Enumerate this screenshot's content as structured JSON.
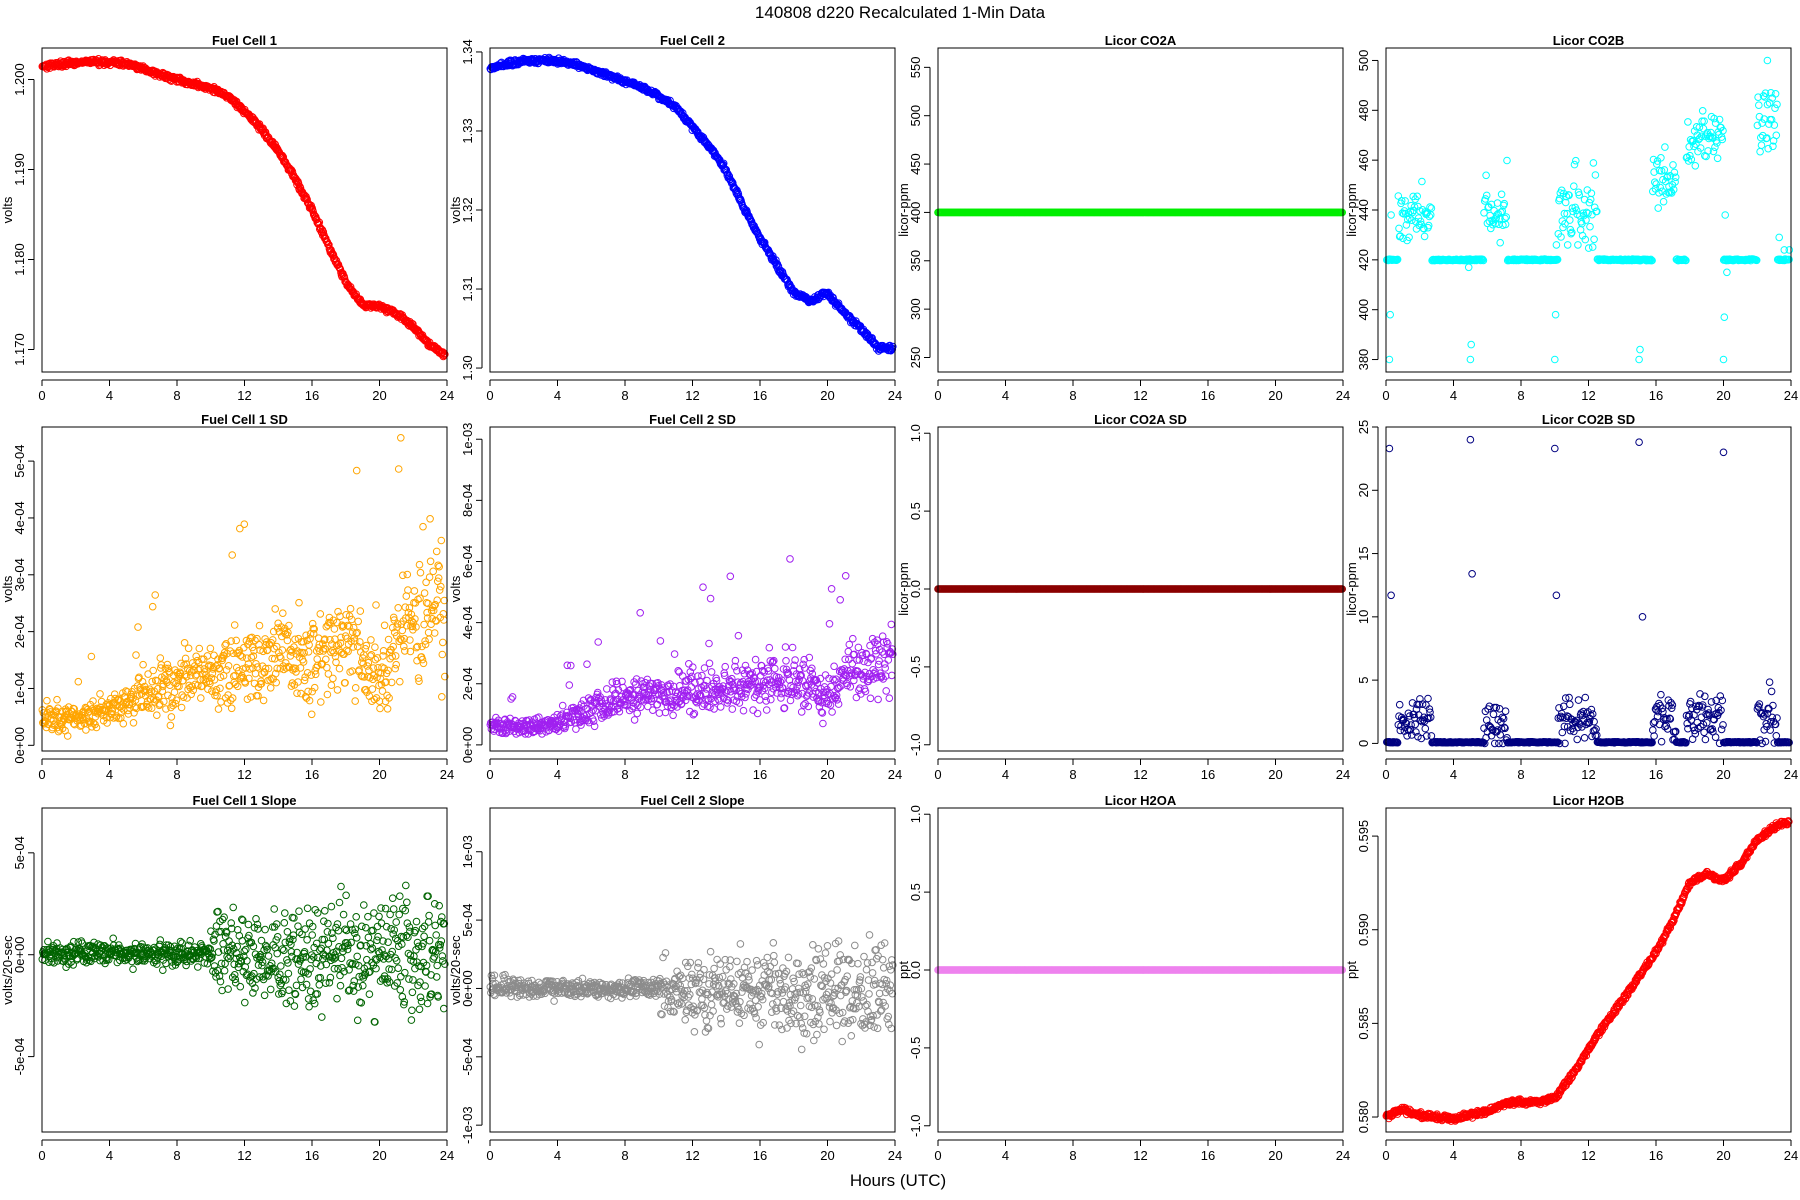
{
  "figure": {
    "title": "140808   d220   Recalculated 1-Min Data",
    "xlabel": "Hours (UTC)"
  },
  "chart_data": [
    {
      "id": "fc1",
      "type": "scatter",
      "title": "Fuel Cell 1",
      "ylabel": "volts",
      "color": "#ff0000",
      "xlim": [
        0,
        24
      ],
      "xticks": [
        0,
        4,
        8,
        12,
        16,
        20,
        24
      ],
      "xtick_labels": [
        "0",
        "4",
        "8",
        "12",
        "16",
        "20",
        "24"
      ],
      "ylim": [
        1.1675,
        1.2035
      ],
      "yticks": [
        1.17,
        1.18,
        1.19,
        1.2
      ],
      "ytick_labels": [
        "1.170",
        "1.180",
        "1.190",
        "1.200"
      ],
      "x": [
        0,
        1,
        2,
        3,
        4,
        5,
        6,
        7,
        8,
        9,
        10,
        11,
        12,
        13,
        14,
        15,
        16,
        17,
        18,
        19,
        20,
        21,
        22,
        23,
        24
      ],
      "y": [
        1.2015,
        1.2017,
        1.2018,
        1.202,
        1.2019,
        1.2018,
        1.2012,
        1.2005,
        1.2,
        1.1995,
        1.199,
        1.1982,
        1.1965,
        1.1945,
        1.192,
        1.189,
        1.1855,
        1.1815,
        1.1775,
        1.175,
        1.1748,
        1.174,
        1.1725,
        1.1705,
        1.1693
      ]
    },
    {
      "id": "fc2",
      "type": "scatter",
      "title": "Fuel Cell 2",
      "ylabel": "volts",
      "color": "#0000ff",
      "xlim": [
        0,
        24
      ],
      "xticks": [
        0,
        4,
        8,
        12,
        16,
        20,
        24
      ],
      "xtick_labels": [
        "0",
        "4",
        "8",
        "12",
        "16",
        "20",
        "24"
      ],
      "ylim": [
        1.2995,
        1.3405
      ],
      "yticks": [
        1.3,
        1.31,
        1.32,
        1.33,
        1.34
      ],
      "ytick_labels": [
        "1.30",
        "1.31",
        "1.32",
        "1.33",
        "1.34"
      ],
      "x": [
        0,
        1,
        2,
        3,
        4,
        5,
        6,
        7,
        8,
        9,
        10,
        11,
        12,
        13,
        14,
        15,
        16,
        17,
        18,
        19,
        20,
        21,
        22,
        23,
        24
      ],
      "y": [
        1.338,
        1.3385,
        1.3388,
        1.339,
        1.3388,
        1.3385,
        1.3378,
        1.337,
        1.3363,
        1.3355,
        1.3345,
        1.333,
        1.3305,
        1.328,
        1.325,
        1.3205,
        1.3165,
        1.313,
        1.3095,
        1.3085,
        1.3095,
        1.307,
        1.305,
        1.3025,
        1.3025
      ]
    },
    {
      "id": "co2a",
      "type": "scatter",
      "title": "Licor CO2A",
      "ylabel": "licor-ppm",
      "color": "#00ee00",
      "xlim": [
        0,
        24
      ],
      "xticks": [
        0,
        4,
        8,
        12,
        16,
        20,
        24
      ],
      "xtick_labels": [
        "0",
        "4",
        "8",
        "12",
        "16",
        "20",
        "24"
      ],
      "ylim": [
        235,
        570
      ],
      "yticks": [
        250,
        300,
        350,
        400,
        450,
        500,
        550
      ],
      "ytick_labels": [
        "250",
        "300",
        "350",
        "400",
        "450",
        "500",
        "550"
      ],
      "x": [
        0,
        24
      ],
      "y": [
        400,
        400
      ]
    },
    {
      "id": "co2b",
      "type": "scatter",
      "title": "Licor CO2B",
      "ylabel": "licor-ppm",
      "color": "#00ffff",
      "xlim": [
        0,
        24
      ],
      "xticks": [
        0,
        4,
        8,
        12,
        16,
        20,
        24
      ],
      "xtick_labels": [
        "0",
        "4",
        "8",
        "12",
        "16",
        "20",
        "24"
      ],
      "ylim": [
        375,
        505
      ],
      "yticks": [
        380,
        400,
        420,
        440,
        460,
        480,
        500
      ],
      "ytick_labels": [
        "380",
        "400",
        "420",
        "440",
        "460",
        "480",
        "500"
      ],
      "baseline": 420,
      "bursts": [
        {
          "x_start": 0.7,
          "x_end": 2.7,
          "center": 437,
          "spread": 5
        },
        {
          "x_start": 5.8,
          "x_end": 7.2,
          "center": 439,
          "spread": 6
        },
        {
          "x_start": 10.2,
          "x_end": 12.5,
          "center": 440,
          "spread": 8
        },
        {
          "x_start": 15.8,
          "x_end": 17.2,
          "center": 452,
          "spread": 6
        },
        {
          "x_start": 17.8,
          "x_end": 20,
          "center": 468,
          "spread": 6
        },
        {
          "x_start": 22,
          "x_end": 23.2,
          "center": 478,
          "spread": 8
        }
      ]
    },
    {
      "id": "fc1sd",
      "type": "scatter",
      "title": "Fuel Cell 1 SD",
      "ylabel": "volts",
      "color": "#ffa500",
      "xlim": [
        0,
        24
      ],
      "xticks": [
        0,
        4,
        8,
        12,
        16,
        20,
        24
      ],
      "xtick_labels": [
        "0",
        "4",
        "8",
        "12",
        "16",
        "20",
        "24"
      ],
      "ylim": [
        -1e-05,
        0.00056
      ],
      "yticks": [
        0,
        0.0001,
        0.0002,
        0.0003,
        0.0004,
        0.0005
      ],
      "ytick_labels": [
        "0e+00",
        "1e-04",
        "2e-04",
        "3e-04",
        "4e-04",
        "5e-04"
      ],
      "x": [
        0,
        2,
        4,
        6,
        8,
        10,
        12,
        14,
        16,
        18,
        20,
        22,
        24
      ],
      "y": [
        5e-05,
        5e-05,
        6e-05,
        9e-05,
        0.00011,
        0.00013,
        0.00014,
        0.00015,
        0.00016,
        0.00018,
        0.00012,
        0.00022,
        0.00024
      ]
    },
    {
      "id": "fc2sd",
      "type": "scatter",
      "title": "Fuel Cell 2 SD",
      "ylabel": "volts",
      "color": "#a020f0",
      "xlim": [
        0,
        24
      ],
      "xticks": [
        0,
        4,
        8,
        12,
        16,
        20,
        24
      ],
      "xtick_labels": [
        "0",
        "4",
        "8",
        "12",
        "16",
        "20",
        "24"
      ],
      "ylim": [
        -2e-05,
        0.00104
      ],
      "yticks": [
        0,
        0.0002,
        0.0004,
        0.0006,
        0.0008,
        0.001
      ],
      "ytick_labels": [
        "0e+00",
        "2e-04",
        "4e-04",
        "6e-04",
        "8e-04",
        "1e-03"
      ],
      "x": [
        0,
        2,
        4,
        6,
        8,
        10,
        12,
        14,
        16,
        18,
        20,
        22,
        24
      ],
      "y": [
        6e-05,
        6e-05,
        7e-05,
        0.00012,
        0.00015,
        0.00016,
        0.00017,
        0.00018,
        0.0002,
        0.00022,
        0.00016,
        0.00025,
        0.0003
      ]
    },
    {
      "id": "co2asd",
      "type": "scatter",
      "title": "Licor CO2A SD",
      "ylabel": "licor-ppm",
      "color": "#8b0000",
      "xlim": [
        0,
        24
      ],
      "xticks": [
        0,
        4,
        8,
        12,
        16,
        20,
        24
      ],
      "xtick_labels": [
        "0",
        "4",
        "8",
        "12",
        "16",
        "20",
        "24"
      ],
      "ylim": [
        -1.04,
        1.04
      ],
      "yticks": [
        -1,
        -0.5,
        0,
        0.5,
        1
      ],
      "ytick_labels": [
        "-1.0",
        "-0.5",
        "0.0",
        "0.5",
        "1.0"
      ],
      "x": [
        0,
        24
      ],
      "y": [
        0,
        0
      ]
    },
    {
      "id": "co2bsd",
      "type": "scatter",
      "title": "Licor CO2B SD",
      "ylabel": "licor-ppm",
      "color": "#000080",
      "xlim": [
        0,
        24
      ],
      "xticks": [
        0,
        4,
        8,
        12,
        16,
        20,
        24
      ],
      "xtick_labels": [
        "0",
        "4",
        "8",
        "12",
        "16",
        "20",
        "24"
      ],
      "ylim": [
        -0.6,
        25
      ],
      "yticks": [
        0,
        5,
        10,
        15,
        20,
        25
      ],
      "ytick_labels": [
        "0",
        "5",
        "10",
        "15",
        "20",
        "25"
      ],
      "baseline": 0.05,
      "bursts": [
        {
          "x_start": 0.7,
          "x_end": 2.7,
          "center": 1.5,
          "spread": 1.3
        },
        {
          "x_start": 5.8,
          "x_end": 7.2,
          "center": 1.5,
          "spread": 1.3
        },
        {
          "x_start": 10.2,
          "x_end": 12.5,
          "center": 1.8,
          "spread": 1.5
        },
        {
          "x_start": 15.8,
          "x_end": 17.2,
          "center": 1.8,
          "spread": 1.5
        },
        {
          "x_start": 17.8,
          "x_end": 20,
          "center": 2,
          "spread": 1.6
        },
        {
          "x_start": 22,
          "x_end": 23.2,
          "center": 2,
          "spread": 1.8
        }
      ],
      "spikes_x": [
        0.2,
        0.3,
        5,
        5.1,
        10,
        10.1,
        15,
        15.2,
        20
      ],
      "spikes_y": [
        23.3,
        11.7,
        24,
        13.4,
        23.3,
        11.7,
        23.8,
        10,
        23
      ]
    },
    {
      "id": "fc1slope",
      "type": "scatter",
      "title": "Fuel Cell 1 Slope",
      "ylabel": "volts/20-sec",
      "color": "#006400",
      "xlim": [
        0,
        24
      ],
      "xticks": [
        0,
        4,
        8,
        12,
        16,
        20,
        24
      ],
      "xtick_labels": [
        "0",
        "4",
        "8",
        "12",
        "16",
        "20",
        "24"
      ],
      "ylim": [
        -0.00087,
        0.00072
      ],
      "yticks": [
        -0.0005,
        0,
        0.0005
      ],
      "ytick_labels": [
        "-5e-04",
        "0e+00",
        "5e-04"
      ],
      "x": [
        0,
        4,
        8,
        12,
        16,
        20,
        24
      ],
      "y": [
        1e-05,
        1e-05,
        0,
        0,
        -2e-05,
        0,
        0
      ]
    },
    {
      "id": "fc2slope",
      "type": "scatter",
      "title": "Fuel Cell 2 Slope",
      "ylabel": "volts/20-sec",
      "color": "#8c8c8c",
      "xlim": [
        0,
        24
      ],
      "xticks": [
        0,
        4,
        8,
        12,
        16,
        20,
        24
      ],
      "xtick_labels": [
        "0",
        "4",
        "8",
        "12",
        "16",
        "20",
        "24"
      ],
      "ylim": [
        -0.00105,
        0.00132
      ],
      "yticks": [
        -0.001,
        -0.0005,
        0,
        0.0005,
        0.001
      ],
      "ytick_labels": [
        "-1e-03",
        "-5e-04",
        "0e+00",
        "5e-04",
        "1e-03"
      ],
      "x": [
        0,
        4,
        8,
        12,
        16,
        20,
        24
      ],
      "y": [
        1e-05,
        0,
        0,
        0,
        -3e-05,
        -2e-05,
        0
      ]
    },
    {
      "id": "h2oa",
      "type": "scatter",
      "title": "Licor H2OA",
      "ylabel": "ppt",
      "color": "#ee82ee",
      "xlim": [
        0,
        24
      ],
      "xticks": [
        0,
        4,
        8,
        12,
        16,
        20,
        24
      ],
      "xtick_labels": [
        "0",
        "4",
        "8",
        "12",
        "16",
        "20",
        "24"
      ],
      "ylim": [
        -1.04,
        1.04
      ],
      "yticks": [
        -1,
        -0.5,
        0,
        0.5,
        1
      ],
      "ytick_labels": [
        "-1.0",
        "-0.5",
        "0.0",
        "0.5",
        "1.0"
      ],
      "x": [
        0,
        24
      ],
      "y": [
        0,
        0
      ]
    },
    {
      "id": "h2ob",
      "type": "scatter",
      "title": "Licor H2OB",
      "ylabel": "ppt",
      "color": "#ff0000",
      "xlim": [
        0,
        24
      ],
      "xticks": [
        0,
        4,
        8,
        12,
        16,
        20,
        24
      ],
      "xtick_labels": [
        "0",
        "4",
        "8",
        "12",
        "16",
        "20",
        "24"
      ],
      "ylim": [
        0.5792,
        0.5965
      ],
      "yticks": [
        0.58,
        0.585,
        0.59,
        0.595
      ],
      "ytick_labels": [
        "0.580",
        "0.585",
        "0.590",
        "0.595"
      ],
      "x": [
        0,
        1,
        2,
        3,
        4,
        5,
        6,
        7,
        8,
        9,
        10,
        11,
        12,
        13,
        14,
        15,
        16,
        17,
        18,
        19,
        20,
        21,
        22,
        23,
        24
      ],
      "y": [
        0.58,
        0.5804,
        0.5801,
        0.58,
        0.5799,
        0.5801,
        0.5803,
        0.5807,
        0.5808,
        0.5808,
        0.581,
        0.5822,
        0.5836,
        0.585,
        0.5862,
        0.5875,
        0.5888,
        0.5905,
        0.5925,
        0.593,
        0.5926,
        0.5935,
        0.5948,
        0.5955,
        0.5958
      ]
    }
  ]
}
